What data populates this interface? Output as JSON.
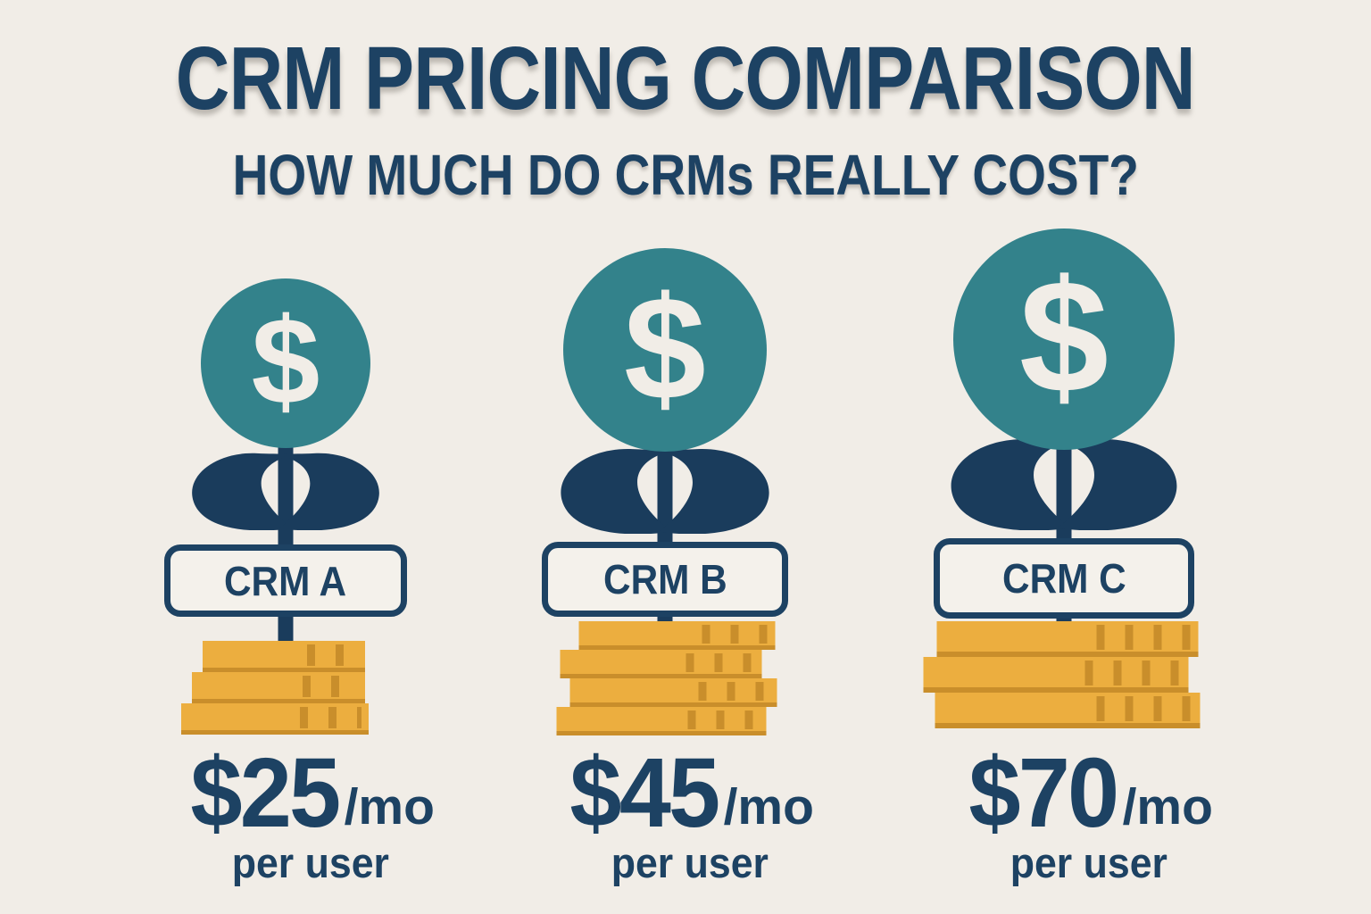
{
  "title": "CRM PRICING COMPARISON",
  "subtitle": "HOW MUCH DO CRMs REALLY COST?",
  "colors": {
    "background": "#F1EDE7",
    "navy_text": "#1D4263",
    "plant_navy": "#1A3C5C",
    "teal_circle": "#33828B",
    "coin_gold": "#ECAE3F",
    "coin_gold_dark": "#C98E2B",
    "label_box_fill": "#F4F1EB"
  },
  "plants": [
    {
      "id": "crm-a",
      "label": "CRM A",
      "dollar_icon": "$",
      "price": "$25",
      "period": "/mo",
      "per_label": "per user",
      "coin_rows": 3
    },
    {
      "id": "crm-b",
      "label": "CRM B",
      "dollar_icon": "$",
      "price": "$45",
      "period": "/mo",
      "per_label": "per user",
      "coin_rows": 4
    },
    {
      "id": "crm-c",
      "label": "CRM C",
      "dollar_icon": "$",
      "price": "$70",
      "period": "/mo",
      "per_label": "per user",
      "coin_rows": 3
    }
  ]
}
